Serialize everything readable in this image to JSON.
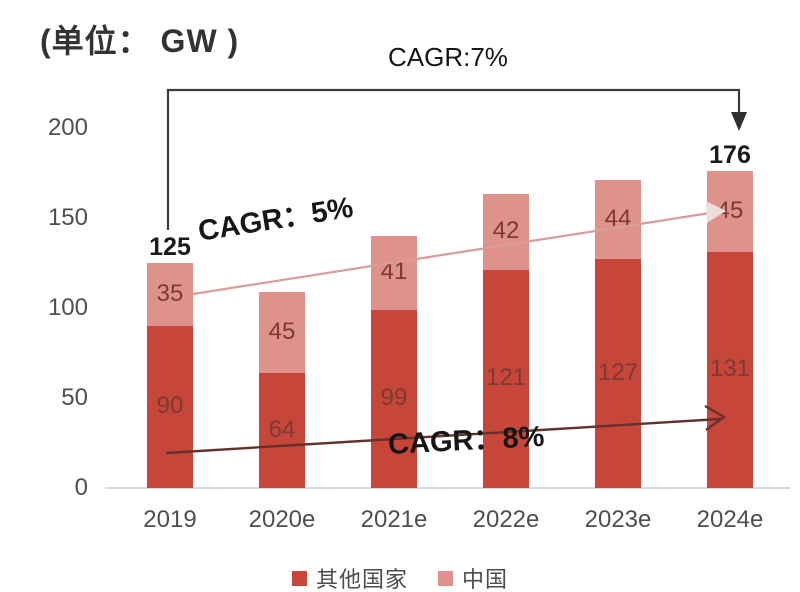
{
  "title": "(单位： GW )",
  "annotations": {
    "cagr_total": "CAGR:7%",
    "cagr_china": "CAGR：5%",
    "cagr_others": "CAGR：8%"
  },
  "legend": {
    "items": [
      {
        "label": "其他国家",
        "color": "#c7463a"
      },
      {
        "label": "中国",
        "color": "#df928c"
      }
    ]
  },
  "colors": {
    "others_bar": "#c7463a",
    "china_bar": "#df928c",
    "value_label": "#7b3a33",
    "total_label": "#1a1a1a",
    "trend_china_line": "#d99c97",
    "trend_others_line": "#66302b",
    "bracket_arrow": "#3c3c3c",
    "axis_text": "#4f4f4f",
    "baseline": "#d9d9d9"
  },
  "chart_data": {
    "type": "bar",
    "stacked": true,
    "title": "(单位： GW )",
    "unit": "GW",
    "categories": [
      "2019",
      "2020e",
      "2021e",
      "2022e",
      "2023e",
      "2024e"
    ],
    "series": [
      {
        "name": "其他国家",
        "color": "#c7463a",
        "values": [
          90,
          64,
          99,
          121,
          127,
          131
        ]
      },
      {
        "name": "中国",
        "color": "#df928c",
        "values": [
          35,
          45,
          41,
          42,
          44,
          45
        ]
      }
    ],
    "totals": [
      125,
      109,
      140,
      163,
      171,
      176
    ],
    "total_labels": [
      "125",
      "",
      "",
      "",
      "",
      "176"
    ],
    "ylim": [
      0,
      200
    ],
    "yticks": [
      0,
      50,
      100,
      150,
      200
    ],
    "grid": false,
    "legend_position": "bottom",
    "annotations": [
      {
        "text": "CAGR:7%",
        "applies_to": "total 2019 to 2024e"
      },
      {
        "text": "CAGR：5%",
        "applies_to": "中国 series"
      },
      {
        "text": "CAGR：8%",
        "applies_to": "其他国家 series"
      }
    ]
  }
}
